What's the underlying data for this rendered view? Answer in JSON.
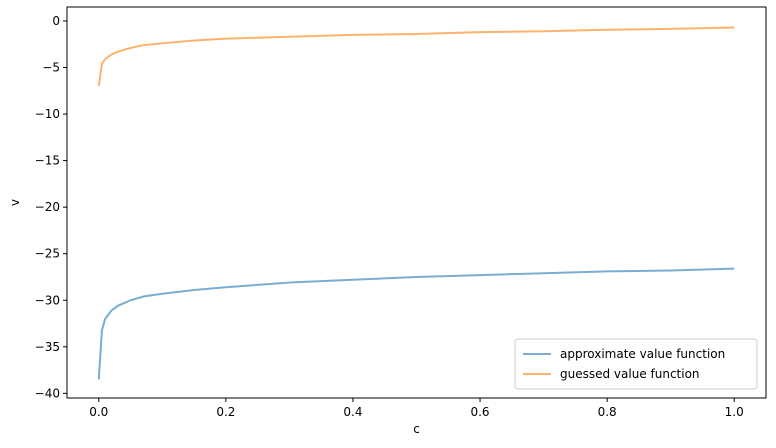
{
  "chart_data": {
    "type": "line",
    "title": "",
    "xlabel": "c",
    "ylabel": "v",
    "xlim": [
      -0.05,
      1.05
    ],
    "ylim": [
      -40.5,
      1.5
    ],
    "xticks": [
      0.0,
      0.2,
      0.4,
      0.6,
      0.8,
      1.0
    ],
    "xtick_labels": [
      "0.0",
      "0.2",
      "0.4",
      "0.6",
      "0.8",
      "1.0"
    ],
    "yticks": [
      0,
      -5,
      -10,
      -15,
      -20,
      -25,
      -30,
      -35,
      -40
    ],
    "ytick_labels": [
      "0",
      "−5",
      "−10",
      "−15",
      "−20",
      "−25",
      "−30",
      "−35",
      "−40"
    ],
    "grid": false,
    "legend_position": "bottom-right",
    "series": [
      {
        "name": "approximate value function",
        "color": "#1f77b4",
        "x": [
          0.0,
          0.005,
          0.01,
          0.02,
          0.03,
          0.05,
          0.07,
          0.1,
          0.15,
          0.2,
          0.3,
          0.4,
          0.5,
          0.6,
          0.7,
          0.8,
          0.9,
          1.0
        ],
        "y": [
          -38.5,
          -33.2,
          -32.0,
          -31.1,
          -30.6,
          -30.0,
          -29.6,
          -29.3,
          -28.9,
          -28.6,
          -28.1,
          -27.8,
          -27.5,
          -27.3,
          -27.1,
          -26.9,
          -26.8,
          -26.6
        ]
      },
      {
        "name": "guessed value function",
        "color": "#ff7f0e",
        "x": [
          0.0,
          0.005,
          0.01,
          0.02,
          0.03,
          0.05,
          0.07,
          0.1,
          0.15,
          0.2,
          0.3,
          0.4,
          0.5,
          0.6,
          0.7,
          0.8,
          0.9,
          1.0
        ],
        "y": [
          -7.0,
          -4.6,
          -4.1,
          -3.6,
          -3.3,
          -2.9,
          -2.6,
          -2.4,
          -2.1,
          -1.9,
          -1.7,
          -1.5,
          -1.4,
          -1.2,
          -1.1,
          -0.95,
          -0.85,
          -0.7
        ]
      }
    ]
  }
}
